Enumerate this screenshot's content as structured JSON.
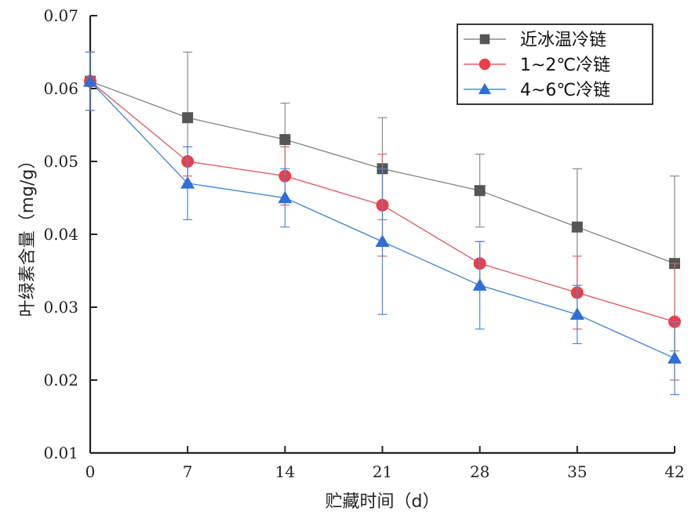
{
  "chart_data": {
    "type": "line",
    "title": "",
    "xlabel": "贮藏时间（d）",
    "ylabel": "叶绿素含量（mg/g）",
    "x": [
      0,
      7,
      14,
      21,
      28,
      35,
      42
    ],
    "xticks": [
      "0",
      "7",
      "14",
      "21",
      "28",
      "35",
      "42"
    ],
    "yticks": [
      "0.01",
      "0.02",
      "0.03",
      "0.04",
      "0.05",
      "0.06",
      "0.07"
    ],
    "ylim": [
      0.01,
      0.07
    ],
    "xlim": [
      0,
      42
    ],
    "grid": false,
    "legend_position": "top-right",
    "series": [
      {
        "name": "近冰温冷链",
        "marker": "square",
        "color": "#555555",
        "line_color": "#8a8a8a",
        "values": [
          0.061,
          0.056,
          0.053,
          0.049,
          0.046,
          0.041,
          0.036
        ],
        "error": [
          0.004,
          0.009,
          0.005,
          0.007,
          0.005,
          0.008,
          0.012
        ]
      },
      {
        "name": "1~2℃冷链",
        "marker": "circle",
        "color": "#e8404a",
        "line_color": "#e06068",
        "values": [
          0.061,
          0.05,
          0.048,
          0.044,
          0.036,
          0.032,
          0.028
        ],
        "error": [
          0.004,
          0.002,
          0.004,
          0.007,
          0.003,
          0.005,
          0.008
        ]
      },
      {
        "name": "4~6℃冷链",
        "marker": "triangle",
        "color": "#2f6fd6",
        "line_color": "#4a8ad8",
        "values": [
          0.061,
          0.047,
          0.045,
          0.039,
          0.033,
          0.029,
          0.023
        ],
        "error": [
          0.004,
          0.005,
          0.004,
          0.01,
          0.006,
          0.004,
          0.005
        ]
      }
    ]
  }
}
